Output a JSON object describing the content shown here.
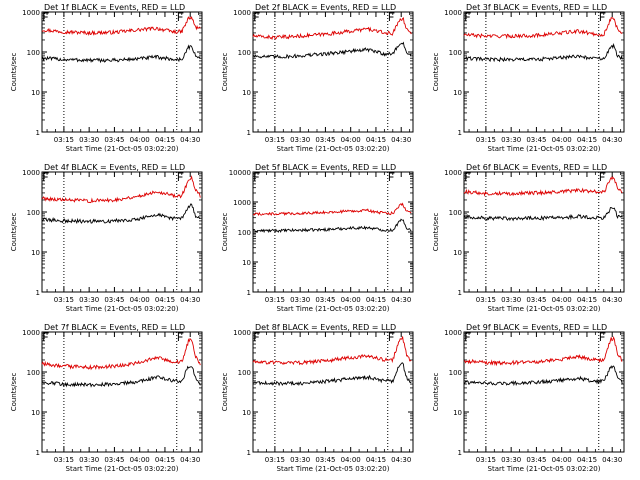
{
  "figure": {
    "background": "#ffffff",
    "series_colors": {
      "events": "#000000",
      "lld": "#dd0000"
    }
  },
  "chart_data": [
    {
      "type": "line",
      "title": "Det 1f BLACK = Events, RED = LLD",
      "xlabel": "Start Time (21-Oct-05 03:02:20)",
      "ylabel": "Counts/sec",
      "yscale": "log",
      "ylim": [
        1,
        1000
      ],
      "ytick_labels": [
        "1",
        "10",
        "100",
        "1000"
      ],
      "xlim": [
        "03:02",
        "04:37"
      ],
      "xtick_labels": [
        "03:15",
        "03:30",
        "03:45",
        "04:00",
        "04:15",
        "04:30"
      ],
      "vlines": [
        "03:15",
        "04:22"
      ],
      "event_markers": [
        "03:03",
        "04:23"
      ],
      "series": [
        {
          "name": "LLD",
          "color": "#dd0000",
          "x": [
            "03:02",
            "03:15",
            "03:30",
            "03:45",
            "04:00",
            "04:10",
            "04:20",
            "04:25",
            "04:29",
            "04:31",
            "04:33",
            "04:36"
          ],
          "values": [
            360,
            320,
            300,
            310,
            360,
            390,
            320,
            320,
            700,
            720,
            420,
            380
          ]
        },
        {
          "name": "Events",
          "color": "#000000",
          "x": [
            "03:02",
            "03:15",
            "03:30",
            "03:45",
            "04:00",
            "04:10",
            "04:20",
            "04:25",
            "04:29",
            "04:31",
            "04:33",
            "04:36"
          ],
          "values": [
            70,
            65,
            62,
            62,
            68,
            75,
            65,
            65,
            130,
            140,
            80,
            70
          ]
        }
      ]
    },
    {
      "type": "line",
      "title": "Det 2f BLACK = Events, RED = LLD",
      "xlabel": "Start Time (21-Oct-05 03:02:20)",
      "ylabel": "Counts/sec",
      "yscale": "log",
      "ylim": [
        1,
        1000
      ],
      "ytick_labels": [
        "1",
        "10",
        "100",
        "1000"
      ],
      "xlim": [
        "03:02",
        "04:37"
      ],
      "xtick_labels": [
        "03:15",
        "03:30",
        "03:45",
        "04:00",
        "04:15",
        "04:30"
      ],
      "vlines": [
        "03:15",
        "04:22"
      ],
      "event_markers": [
        "03:03",
        "04:23"
      ],
      "series": [
        {
          "name": "LLD",
          "color": "#dd0000",
          "x": [
            "03:02",
            "03:15",
            "03:30",
            "03:45",
            "04:00",
            "04:10",
            "04:20",
            "04:25",
            "04:29",
            "04:31",
            "04:33",
            "04:36"
          ],
          "values": [
            250,
            230,
            250,
            280,
            330,
            380,
            300,
            290,
            650,
            700,
            380,
            300
          ]
        },
        {
          "name": "Events",
          "color": "#000000",
          "x": [
            "03:02",
            "03:15",
            "03:30",
            "03:45",
            "04:00",
            "04:10",
            "04:20",
            "04:25",
            "04:29",
            "04:31",
            "04:33",
            "04:36"
          ],
          "values": [
            80,
            75,
            80,
            90,
            105,
            115,
            90,
            90,
            160,
            170,
            100,
            85
          ]
        }
      ]
    },
    {
      "type": "line",
      "title": "Det 3f BLACK = Events, RED = LLD",
      "xlabel": "Start Time (21-Oct-05 03:02:20)",
      "ylabel": "Counts/sec",
      "yscale": "log",
      "ylim": [
        1,
        1000
      ],
      "ytick_labels": [
        "1",
        "10",
        "100",
        "1000"
      ],
      "xlim": [
        "03:02",
        "04:37"
      ],
      "xtick_labels": [
        "03:15",
        "03:30",
        "03:45",
        "04:00",
        "04:15",
        "04:30"
      ],
      "vlines": [
        "03:15",
        "04:22"
      ],
      "event_markers": [
        "03:03",
        "04:23"
      ],
      "series": [
        {
          "name": "LLD",
          "color": "#dd0000",
          "x": [
            "03:02",
            "03:15",
            "03:30",
            "03:45",
            "04:00",
            "04:10",
            "04:20",
            "04:25",
            "04:29",
            "04:31",
            "04:33",
            "04:36"
          ],
          "values": [
            270,
            250,
            250,
            260,
            300,
            330,
            280,
            270,
            650,
            700,
            380,
            300
          ]
        },
        {
          "name": "Events",
          "color": "#000000",
          "x": [
            "03:02",
            "03:15",
            "03:30",
            "03:45",
            "04:00",
            "04:10",
            "04:20",
            "04:25",
            "04:29",
            "04:31",
            "04:33",
            "04:36"
          ],
          "values": [
            70,
            65,
            65,
            65,
            72,
            78,
            68,
            68,
            130,
            140,
            80,
            68
          ]
        }
      ]
    },
    {
      "type": "line",
      "title": "Det 4f BLACK = Events, RED = LLD",
      "xlabel": "Start Time (21-Oct-05 03:02:20)",
      "ylabel": "Counts/sec",
      "yscale": "log",
      "ylim": [
        1,
        1000
      ],
      "ytick_labels": [
        "1",
        "10",
        "100",
        "1000"
      ],
      "xlim": [
        "03:02",
        "04:37"
      ],
      "xtick_labels": [
        "03:15",
        "03:30",
        "03:45",
        "04:00",
        "04:15",
        "04:30"
      ],
      "vlines": [
        "03:15",
        "04:22"
      ],
      "event_markers": [
        "03:03",
        "04:23"
      ],
      "series": [
        {
          "name": "LLD",
          "color": "#dd0000",
          "x": [
            "03:02",
            "03:15",
            "03:30",
            "03:45",
            "04:00",
            "04:10",
            "04:20",
            "04:25",
            "04:29",
            "04:31",
            "04:33",
            "04:36"
          ],
          "values": [
            220,
            200,
            190,
            200,
            250,
            330,
            260,
            250,
            650,
            700,
            350,
            250
          ]
        },
        {
          "name": "Events",
          "color": "#000000",
          "x": [
            "03:02",
            "03:15",
            "03:30",
            "03:45",
            "04:00",
            "04:10",
            "04:20",
            "04:25",
            "04:29",
            "04:31",
            "04:33",
            "04:36"
          ],
          "values": [
            65,
            60,
            58,
            60,
            68,
            85,
            70,
            68,
            140,
            150,
            80,
            65
          ]
        }
      ]
    },
    {
      "type": "line",
      "title": "Det 5f BLACK = Events, RED = LLD",
      "xlabel": "Start Time (21-Oct-05 03:02:20)",
      "ylabel": "Counts/sec",
      "yscale": "log",
      "ylim": [
        1,
        10000
      ],
      "ytick_labels": [
        "1",
        "10",
        "100",
        "1000",
        "10000"
      ],
      "xlim": [
        "03:02",
        "04:37"
      ],
      "xtick_labels": [
        "03:15",
        "03:30",
        "03:45",
        "04:00",
        "04:15",
        "04:30"
      ],
      "vlines": [
        "03:15",
        "04:22"
      ],
      "event_markers": [
        "03:03",
        "04:23"
      ],
      "series": [
        {
          "name": "LLD",
          "color": "#dd0000",
          "x": [
            "03:02",
            "03:15",
            "03:30",
            "03:45",
            "04:00",
            "04:10",
            "04:20",
            "04:25",
            "04:29",
            "04:31",
            "04:33",
            "04:36"
          ],
          "values": [
            400,
            400,
            420,
            450,
            500,
            520,
            420,
            420,
            800,
            850,
            520,
            430
          ]
        },
        {
          "name": "Events",
          "color": "#000000",
          "x": [
            "03:02",
            "03:15",
            "03:30",
            "03:45",
            "04:00",
            "04:10",
            "04:20",
            "04:25",
            "04:29",
            "04:31",
            "04:33",
            "04:36"
          ],
          "values": [
            110,
            110,
            115,
            120,
            135,
            140,
            115,
            115,
            230,
            250,
            140,
            115
          ]
        }
      ]
    },
    {
      "type": "line",
      "title": "Det 6f BLACK = Events, RED = LLD",
      "xlabel": "Start Time (21-Oct-05 03:02:20)",
      "ylabel": "Counts/sec",
      "yscale": "log",
      "ylim": [
        1,
        1000
      ],
      "ytick_labels": [
        "1",
        "10",
        "100",
        "1000"
      ],
      "xlim": [
        "03:02",
        "04:37"
      ],
      "xtick_labels": [
        "03:15",
        "03:30",
        "03:45",
        "04:00",
        "04:15",
        "04:30"
      ],
      "vlines": [
        "03:15",
        "04:22"
      ],
      "event_markers": [
        "03:03",
        "04:23"
      ],
      "series": [
        {
          "name": "LLD",
          "color": "#dd0000",
          "x": [
            "03:02",
            "03:15",
            "03:30",
            "03:45",
            "04:00",
            "04:10",
            "04:20",
            "04:25",
            "04:29",
            "04:31",
            "04:33",
            "04:36"
          ],
          "values": [
            320,
            290,
            290,
            300,
            320,
            350,
            320,
            310,
            650,
            700,
            400,
            330
          ]
        },
        {
          "name": "Events",
          "color": "#000000",
          "x": [
            "03:02",
            "03:15",
            "03:30",
            "03:45",
            "04:00",
            "04:10",
            "04:20",
            "04:25",
            "04:29",
            "04:31",
            "04:33",
            "04:36"
          ],
          "values": [
            75,
            70,
            68,
            70,
            72,
            78,
            72,
            70,
            120,
            130,
            80,
            72
          ]
        }
      ]
    },
    {
      "type": "line",
      "title": "Det 7f BLACK = Events, RED = LLD",
      "xlabel": "Start Time (21-Oct-05 03:02:20)",
      "ylabel": "Counts/sec",
      "yscale": "log",
      "ylim": [
        1,
        1000
      ],
      "ytick_labels": [
        "1",
        "10",
        "100",
        "1000"
      ],
      "xlim": [
        "03:02",
        "04:37"
      ],
      "xtick_labels": [
        "03:15",
        "03:30",
        "03:45",
        "04:00",
        "04:15",
        "04:30"
      ],
      "vlines": [
        "03:15",
        "04:22"
      ],
      "event_markers": [
        "03:03",
        "04:23"
      ],
      "series": [
        {
          "name": "LLD",
          "color": "#dd0000",
          "x": [
            "03:02",
            "03:15",
            "03:30",
            "03:45",
            "04:00",
            "04:10",
            "04:20",
            "04:25",
            "04:29",
            "04:31",
            "04:33",
            "04:36"
          ],
          "values": [
            160,
            140,
            130,
            140,
            170,
            230,
            180,
            180,
            600,
            650,
            250,
            150
          ]
        },
        {
          "name": "Events",
          "color": "#000000",
          "x": [
            "03:02",
            "03:15",
            "03:30",
            "03:45",
            "04:00",
            "04:10",
            "04:20",
            "04:25",
            "04:29",
            "04:31",
            "04:33",
            "04:36"
          ],
          "values": [
            55,
            50,
            48,
            50,
            58,
            75,
            60,
            60,
            140,
            150,
            70,
            50
          ]
        }
      ]
    },
    {
      "type": "line",
      "title": "Det 8f BLACK = Events, RED = LLD",
      "xlabel": "Start Time (21-Oct-05 03:02:20)",
      "ylabel": "Counts/sec",
      "yscale": "log",
      "ylim": [
        1,
        1000
      ],
      "ytick_labels": [
        "1",
        "10",
        "100",
        "1000"
      ],
      "xlim": [
        "03:02",
        "04:37"
      ],
      "xtick_labels": [
        "03:15",
        "03:30",
        "03:45",
        "04:00",
        "04:15",
        "04:30"
      ],
      "vlines": [
        "03:15",
        "04:22"
      ],
      "event_markers": [
        "03:03",
        "04:23"
      ],
      "series": [
        {
          "name": "LLD",
          "color": "#dd0000",
          "x": [
            "03:02",
            "03:15",
            "03:30",
            "03:45",
            "04:00",
            "04:10",
            "04:20",
            "04:25",
            "04:29",
            "04:31",
            "04:33",
            "04:36"
          ],
          "values": [
            180,
            170,
            170,
            190,
            230,
            250,
            200,
            200,
            650,
            700,
            280,
            180
          ]
        },
        {
          "name": "Events",
          "color": "#000000",
          "x": [
            "03:02",
            "03:15",
            "03:30",
            "03:45",
            "04:00",
            "04:10",
            "04:20",
            "04:25",
            "04:29",
            "04:31",
            "04:33",
            "04:36"
          ],
          "values": [
            55,
            52,
            52,
            58,
            68,
            75,
            60,
            60,
            150,
            160,
            75,
            55
          ]
        }
      ]
    },
    {
      "type": "line",
      "title": "Det 9f BLACK = Events, RED = LLD",
      "xlabel": "Start Time (21-Oct-05 03:02:20)",
      "ylabel": "Counts/sec",
      "yscale": "log",
      "ylim": [
        1,
        1000
      ],
      "ytick_labels": [
        "1",
        "10",
        "100",
        "1000"
      ],
      "xlim": [
        "03:02",
        "04:37"
      ],
      "xtick_labels": [
        "03:15",
        "03:30",
        "03:45",
        "04:00",
        "04:15",
        "04:30"
      ],
      "vlines": [
        "03:15",
        "04:22"
      ],
      "event_markers": [
        "03:03",
        "04:23"
      ],
      "series": [
        {
          "name": "LLD",
          "color": "#dd0000",
          "x": [
            "03:02",
            "03:15",
            "03:30",
            "03:45",
            "04:00",
            "04:10",
            "04:20",
            "04:25",
            "04:29",
            "04:31",
            "04:33",
            "04:36"
          ],
          "values": [
            190,
            170,
            170,
            180,
            210,
            240,
            200,
            200,
            650,
            700,
            300,
            190
          ]
        },
        {
          "name": "Events",
          "color": "#000000",
          "x": [
            "03:02",
            "03:15",
            "03:30",
            "03:45",
            "04:00",
            "04:10",
            "04:20",
            "04:25",
            "04:29",
            "04:31",
            "04:33",
            "04:36"
          ],
          "values": [
            55,
            52,
            52,
            55,
            62,
            70,
            58,
            58,
            130,
            140,
            70,
            55
          ]
        }
      ]
    }
  ]
}
